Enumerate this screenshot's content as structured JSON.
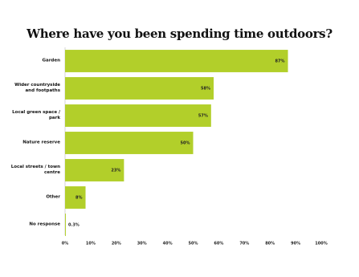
{
  "chart_data": {
    "type": "hbar",
    "title": "Where have you been spending time outdoors?",
    "categories": [
      "Garden",
      "Wider countryside and footpaths",
      "Local green space / park",
      "Nature reserve",
      "Local streets / town centre",
      "Other",
      "No response"
    ],
    "values": [
      87,
      58,
      57,
      50,
      23,
      8,
      0.3
    ],
    "value_labels": [
      "87%",
      "58%",
      "57%",
      "50%",
      "23%",
      "8%",
      "0.3%"
    ],
    "color": "#b2cf2a",
    "xlim": [
      0,
      100
    ],
    "xticks": [
      {
        "value": 0,
        "label": "0%"
      },
      {
        "value": 10,
        "label": "10%"
      },
      {
        "value": 20,
        "label": "20%"
      },
      {
        "value": 30,
        "label": "30%"
      },
      {
        "value": 40,
        "label": "40%"
      },
      {
        "value": 50,
        "label": "50%"
      },
      {
        "value": 60,
        "label": "60%"
      },
      {
        "value": 70,
        "label": "70%"
      },
      {
        "value": 80,
        "label": "80%"
      },
      {
        "value": 90,
        "label": "90%"
      },
      {
        "value": 100,
        "label": "100%"
      }
    ]
  }
}
